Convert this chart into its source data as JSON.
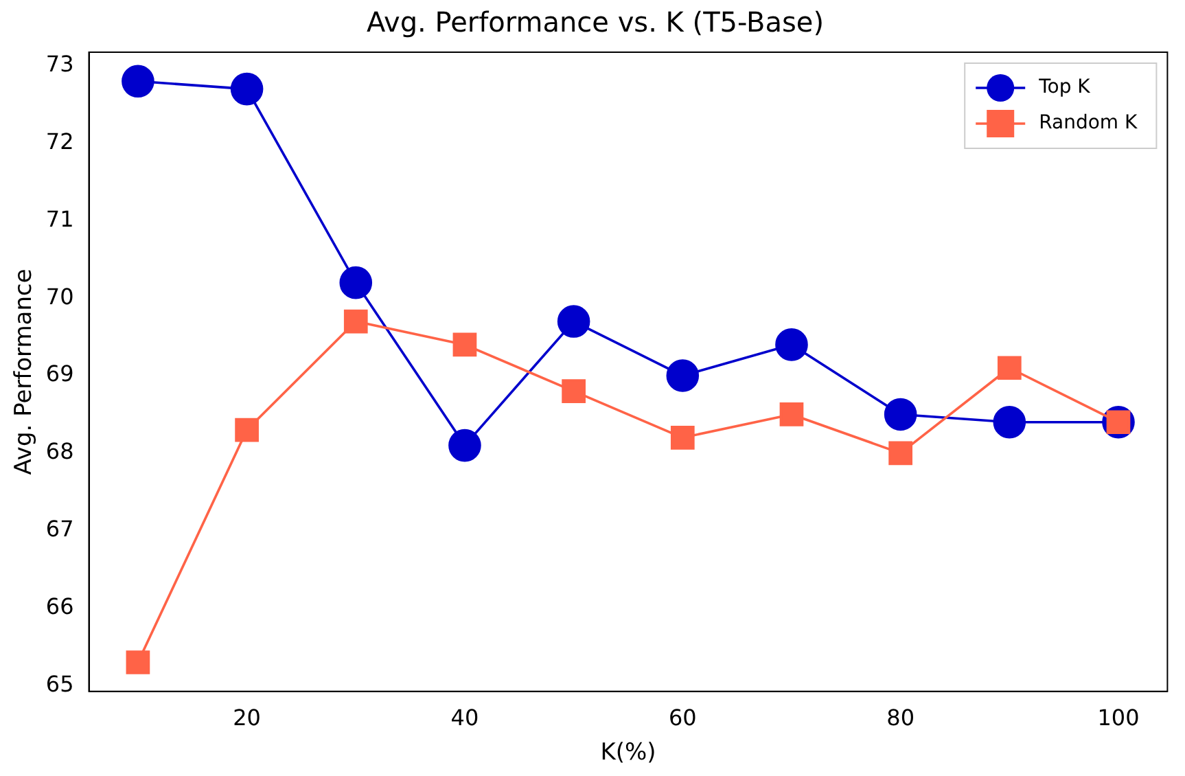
{
  "chart_data": {
    "type": "line",
    "title": "Avg. Performance vs. K (T5-Base)",
    "xlabel": "K(%)",
    "ylabel": "Avg. Performance",
    "x": [
      10,
      20,
      30,
      40,
      50,
      60,
      70,
      80,
      90,
      100
    ],
    "series": [
      {
        "name": "Top K",
        "color": "#0000cc",
        "marker": "circle",
        "values": [
          72.8,
          72.7,
          70.2,
          68.1,
          69.7,
          69.0,
          69.4,
          68.5,
          68.4,
          68.4
        ]
      },
      {
        "name": "Random K",
        "color": "#ff6347",
        "marker": "square",
        "values": [
          65.3,
          68.3,
          69.7,
          69.4,
          68.8,
          68.2,
          68.5,
          68.0,
          69.1,
          68.4
        ]
      }
    ],
    "xlim": [
      5.5,
      104.5
    ],
    "xticks": [
      20,
      40,
      60,
      80,
      100
    ],
    "ylim": [
      64.925,
      73.175
    ],
    "yticks": [
      65,
      66,
      67,
      68,
      69,
      70,
      71,
      72,
      73
    ],
    "grid": false,
    "legend": "top right",
    "line_style": "solid"
  }
}
